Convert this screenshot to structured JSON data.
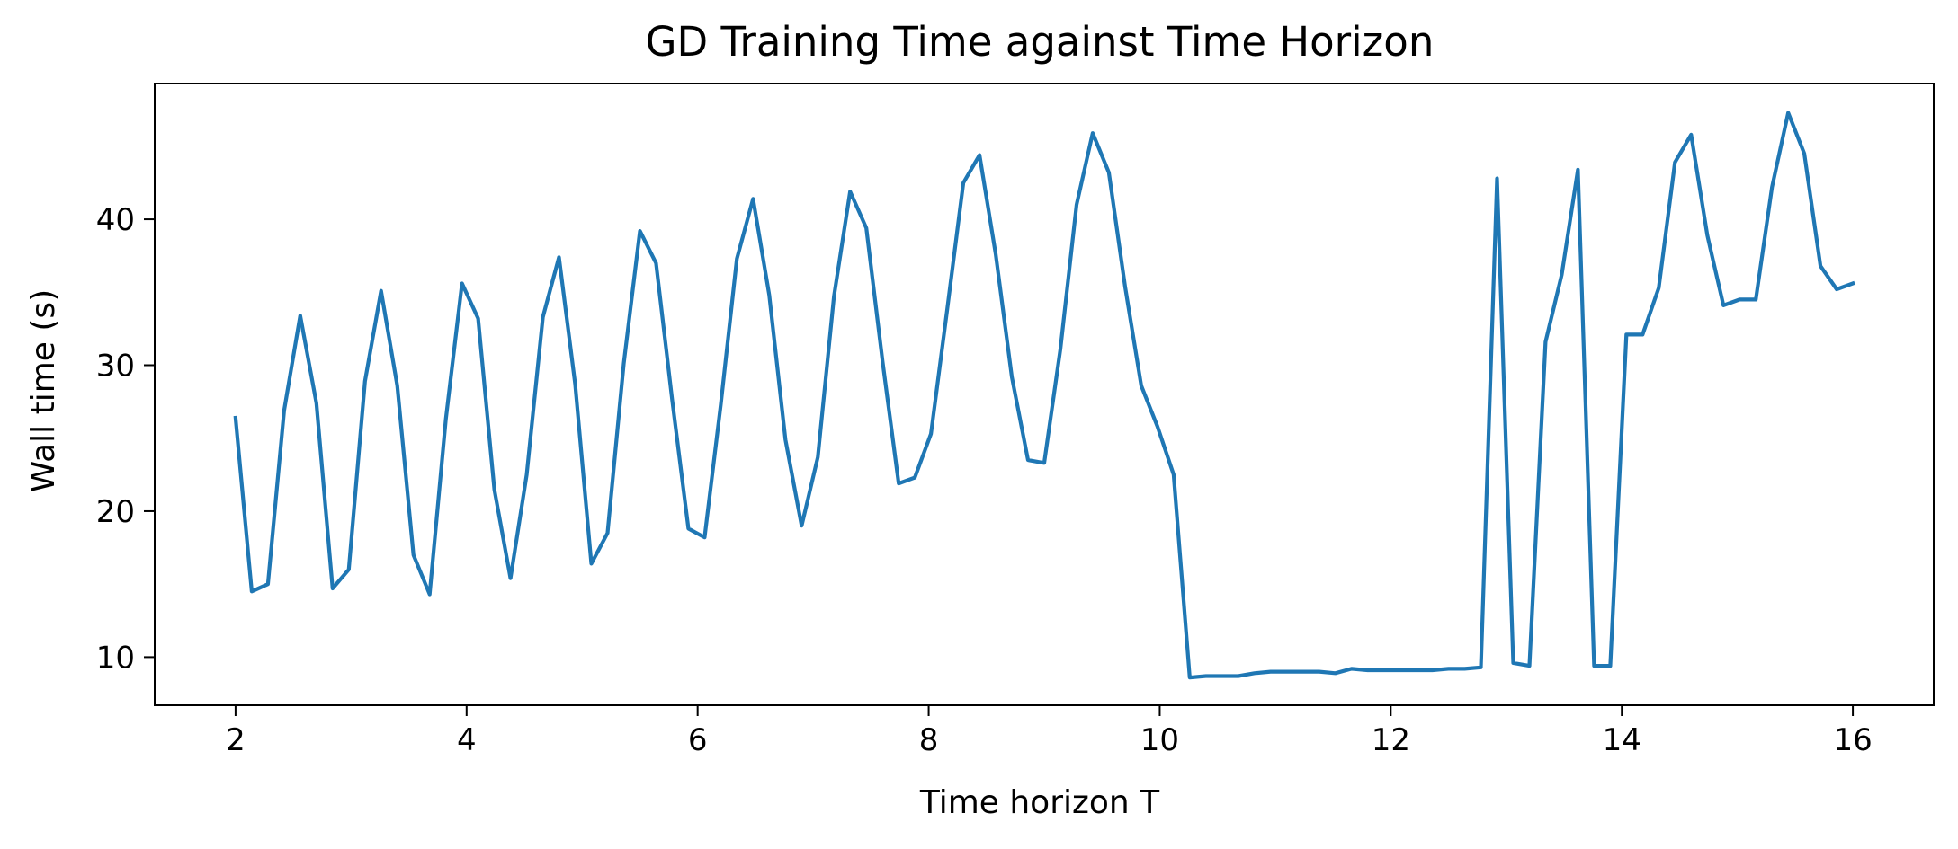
{
  "chart_data": {
    "type": "line",
    "title": "GD Training Time against Time Horizon",
    "xlabel": "Time horizon T",
    "ylabel": "Wall time (s)",
    "xlim": [
      1.3,
      16.7
    ],
    "ylim": [
      6.7,
      49.3
    ],
    "x_ticks": [
      2,
      4,
      6,
      8,
      10,
      12,
      14,
      16
    ],
    "y_ticks": [
      10,
      20,
      30,
      40
    ],
    "grid": false,
    "legend": "none",
    "line_color": "#1f77b4",
    "series": [
      {
        "x": [
          2.0,
          2.14,
          2.28,
          2.42,
          2.56,
          2.7,
          2.84,
          2.98,
          3.12,
          3.26,
          3.4,
          3.54,
          3.68,
          3.82,
          3.96,
          4.1,
          4.24,
          4.38,
          4.52,
          4.66,
          4.8,
          4.94,
          5.08,
          5.22,
          5.36,
          5.5,
          5.64,
          5.78,
          5.92,
          6.06,
          6.2,
          6.34,
          6.48,
          6.62,
          6.76,
          6.9,
          7.04,
          7.18,
          7.32,
          7.46,
          7.6,
          7.74,
          7.88,
          8.02,
          8.16,
          8.3,
          8.44,
          8.58,
          8.72,
          8.86,
          9.0,
          9.14,
          9.28,
          9.42,
          9.56,
          9.7,
          9.84,
          9.98,
          10.12,
          10.26,
          10.4,
          10.54,
          10.68,
          10.82,
          10.96,
          11.1,
          11.24,
          11.38,
          11.52,
          11.66,
          11.8,
          11.94,
          12.08,
          12.22,
          12.36,
          12.5,
          12.64,
          12.78,
          12.92,
          13.06,
          13.2,
          13.34,
          13.48,
          13.62,
          13.76,
          13.9,
          14.04,
          14.18,
          14.32,
          14.46,
          14.6,
          14.74,
          14.88,
          15.02,
          15.16,
          15.3,
          15.44,
          15.58,
          15.72,
          15.86,
          16.0
        ],
        "values": [
          26.4,
          14.5,
          15.0,
          26.9,
          33.4,
          27.4,
          14.7,
          16.0,
          28.9,
          35.1,
          28.6,
          17.0,
          14.3,
          26.3,
          35.6,
          33.2,
          21.5,
          15.4,
          22.5,
          33.3,
          37.4,
          28.7,
          16.4,
          18.5,
          30.1,
          39.2,
          37.0,
          27.6,
          18.8,
          18.2,
          27.3,
          37.3,
          41.4,
          34.8,
          24.9,
          19.0,
          23.7,
          34.7,
          41.9,
          39.4,
          30.3,
          21.9,
          22.3,
          25.3,
          33.8,
          42.5,
          44.4,
          37.6,
          29.2,
          23.5,
          23.3,
          31.1,
          41.0,
          45.9,
          43.2,
          35.4,
          28.6,
          25.8,
          22.5,
          8.6,
          8.7,
          8.7,
          8.7,
          8.9,
          9.0,
          9.0,
          9.0,
          9.0,
          8.9,
          9.2,
          9.1,
          9.1,
          9.1,
          9.1,
          9.1,
          9.2,
          9.2,
          9.3,
          42.8,
          9.6,
          9.4,
          31.6,
          36.2,
          43.4,
          9.4,
          9.4,
          32.1,
          32.1,
          35.3,
          43.9,
          45.8,
          38.9,
          34.1,
          34.5,
          34.5,
          42.2,
          47.3,
          44.5,
          36.8,
          35.2,
          35.6
        ]
      }
    ]
  }
}
